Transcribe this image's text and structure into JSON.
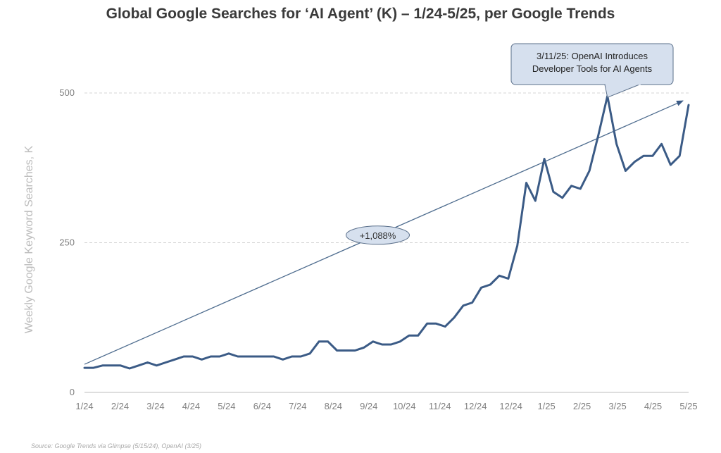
{
  "chart_data": {
    "type": "line",
    "title": "Global Google Searches for ‘AI Agent’ (K) – 1/24-5/25, per Google Trends",
    "ylabel": "Weekly Google Keyword Searches, K",
    "xlabel": "",
    "ylim": [
      0,
      500
    ],
    "yticks": [
      "0",
      "250",
      "500"
    ],
    "x_tick_labels": [
      "1/24",
      "2/24",
      "3/24",
      "4/24",
      "5/24",
      "6/24",
      "7/24",
      "8/24",
      "9/24",
      "10/24",
      "11/24",
      "12/24",
      "12/24",
      "1/25",
      "2/25",
      "3/25",
      "4/25",
      "5/25"
    ],
    "grid": "horizontal dashed",
    "series": [
      {
        "color": "#3b5b86",
        "values": [
          41,
          41,
          45,
          45,
          45,
          40,
          45,
          50,
          45,
          50,
          55,
          60,
          60,
          55,
          60,
          60,
          65,
          60,
          60,
          60,
          60,
          60,
          55,
          60,
          60,
          65,
          85,
          85,
          70,
          70,
          70,
          75,
          85,
          80,
          80,
          85,
          95,
          95,
          115,
          115,
          110,
          125,
          145,
          150,
          175,
          180,
          195,
          190,
          245,
          350,
          320,
          390,
          335,
          325,
          345,
          340,
          370,
          430,
          495,
          415,
          370,
          385,
          395,
          395,
          415,
          380,
          395,
          480
        ]
      }
    ],
    "trendline": {
      "label": "+1,088%",
      "start": 47,
      "end": 487,
      "color": "#4f6d8f"
    },
    "annotation": {
      "lines": [
        "3/11/25: OpenAI Introduces",
        "Developer Tools for AI Agents"
      ],
      "point_index": 58
    },
    "source": "Source: Google Trends via Glimpse (5/15/24), OpenAI (3/25)"
  }
}
